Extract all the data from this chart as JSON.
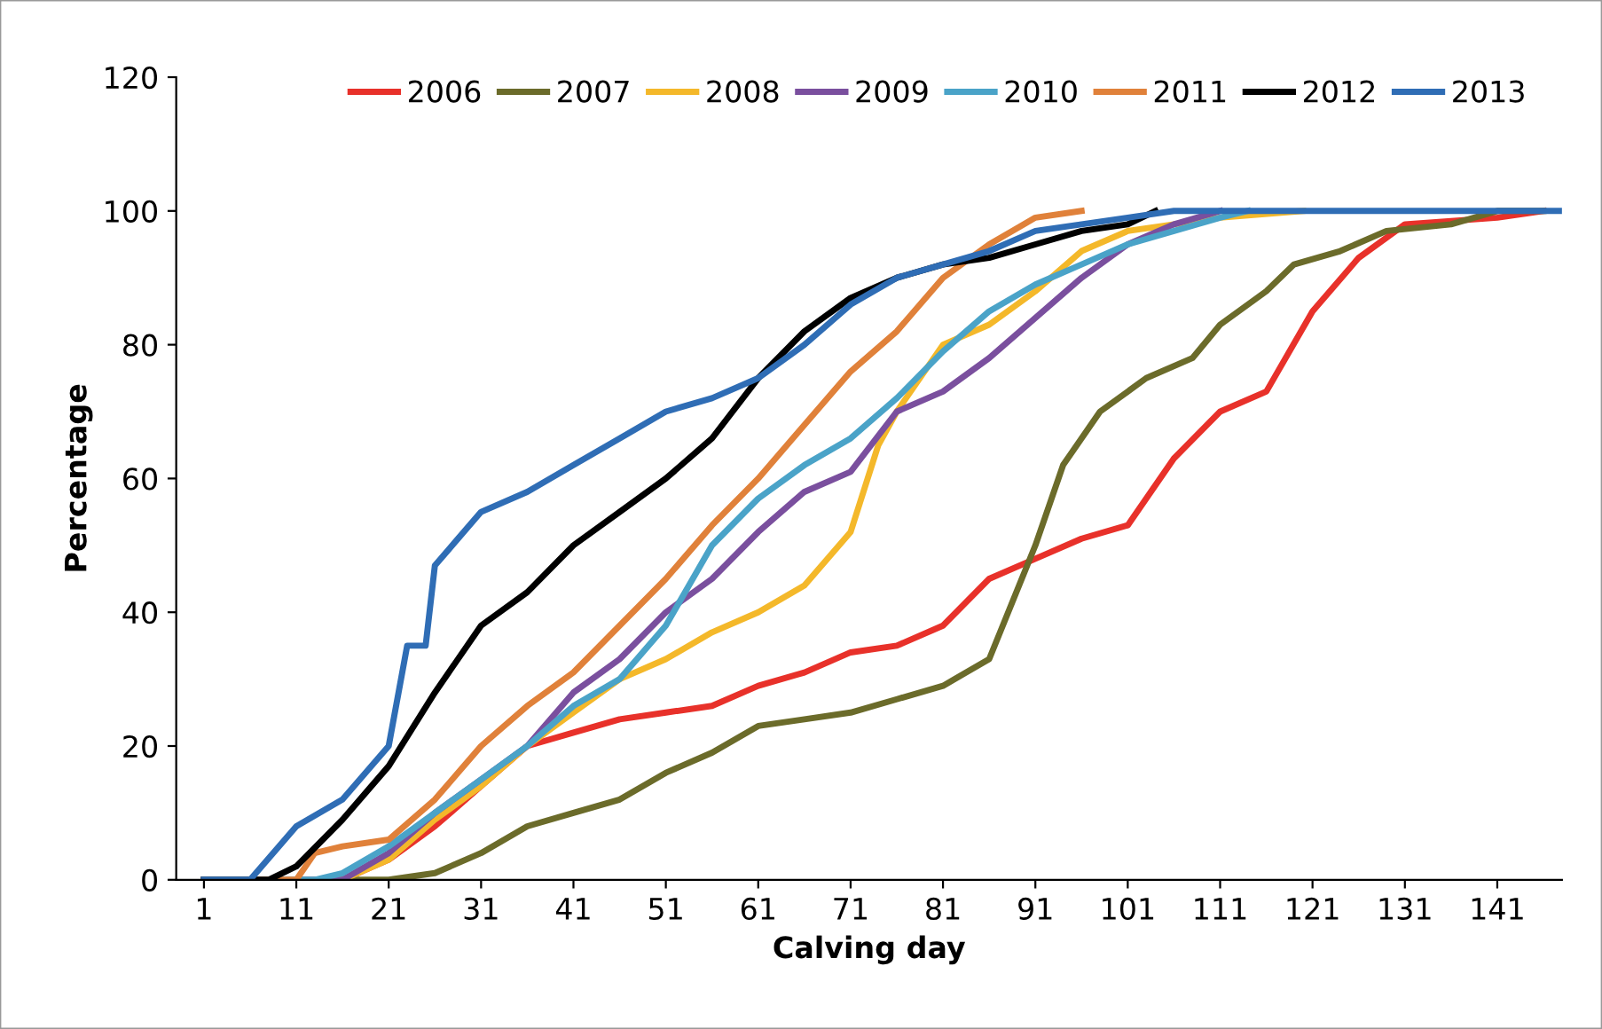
{
  "chart_data": {
    "type": "line",
    "xlabel": "Calving day",
    "ylabel": "Percentage",
    "xlim": [
      -2,
      148
    ],
    "xticks": [
      1,
      11,
      21,
      31,
      41,
      51,
      61,
      71,
      81,
      91,
      101,
      111,
      121,
      131,
      141
    ],
    "ylim": [
      0,
      120
    ],
    "yticks": [
      0,
      20,
      40,
      60,
      80,
      100,
      120
    ],
    "grid": false,
    "legend": "top",
    "marker": "none",
    "line_style": "solid",
    "series": [
      {
        "name": "2006",
        "color": "#e8312a",
        "x": [
          1,
          16,
          21,
          26,
          31,
          36,
          41,
          46,
          51,
          56,
          61,
          66,
          71,
          76,
          81,
          86,
          91,
          96,
          101,
          106,
          111,
          116,
          121,
          126,
          131,
          141,
          146
        ],
        "values": [
          0,
          0,
          3,
          8,
          14,
          20,
          22,
          24,
          25,
          26,
          29,
          31,
          34,
          35,
          38,
          45,
          48,
          51,
          53,
          63,
          70,
          73,
          85,
          93,
          98,
          99,
          100
        ]
      },
      {
        "name": "2007",
        "color": "#6b6b2a",
        "x": [
          1,
          21,
          26,
          31,
          36,
          41,
          46,
          51,
          56,
          61,
          66,
          71,
          76,
          81,
          86,
          91,
          94,
          98,
          103,
          108,
          111,
          116,
          119,
          124,
          129,
          136,
          141,
          146
        ],
        "values": [
          0,
          0,
          1,
          4,
          8,
          10,
          12,
          16,
          19,
          23,
          24,
          25,
          27,
          29,
          33,
          50,
          62,
          70,
          75,
          78,
          83,
          88,
          92,
          94,
          97,
          98,
          100,
          100
        ]
      },
      {
        "name": "2008",
        "color": "#f4b82a",
        "x": [
          1,
          16,
          21,
          26,
          31,
          36,
          41,
          46,
          51,
          56,
          61,
          66,
          71,
          74,
          76,
          81,
          86,
          91,
          96,
          101,
          106,
          111,
          120
        ],
        "values": [
          0,
          0,
          3,
          9,
          14,
          20,
          25,
          30,
          33,
          37,
          40,
          44,
          52,
          65,
          70,
          80,
          83,
          88,
          94,
          97,
          98,
          99,
          100
        ]
      },
      {
        "name": "2009",
        "color": "#7a4f9e",
        "x": [
          1,
          16,
          21,
          26,
          31,
          36,
          41,
          46,
          51,
          56,
          61,
          66,
          71,
          76,
          81,
          86,
          91,
          96,
          101,
          106,
          111
        ],
        "values": [
          0,
          0,
          4,
          10,
          15,
          20,
          28,
          33,
          40,
          45,
          52,
          58,
          61,
          70,
          73,
          78,
          84,
          90,
          95,
          98,
          100
        ]
      },
      {
        "name": "2010",
        "color": "#4aa3c8",
        "x": [
          1,
          13,
          16,
          21,
          26,
          31,
          36,
          41,
          46,
          51,
          56,
          61,
          66,
          71,
          76,
          81,
          86,
          91,
          96,
          101,
          106,
          111,
          114
        ],
        "values": [
          0,
          0,
          1,
          5,
          10,
          15,
          20,
          26,
          30,
          38,
          50,
          57,
          62,
          66,
          72,
          79,
          85,
          89,
          92,
          95,
          97,
          99,
          100
        ]
      },
      {
        "name": "2011",
        "color": "#e0813a",
        "x": [
          1,
          11,
          13,
          16,
          21,
          26,
          31,
          36,
          41,
          46,
          51,
          56,
          61,
          66,
          71,
          76,
          81,
          86,
          91,
          96
        ],
        "values": [
          0,
          0,
          4,
          5,
          6,
          12,
          20,
          26,
          31,
          38,
          45,
          53,
          60,
          68,
          76,
          82,
          90,
          95,
          99,
          100
        ]
      },
      {
        "name": "2012",
        "color": "#000000",
        "x": [
          1,
          8,
          11,
          16,
          21,
          26,
          31,
          36,
          41,
          46,
          51,
          56,
          61,
          66,
          71,
          76,
          81,
          86,
          91,
          96,
          101,
          104
        ],
        "values": [
          0,
          0,
          2,
          9,
          17,
          28,
          38,
          43,
          50,
          55,
          60,
          66,
          75,
          82,
          87,
          90,
          92,
          93,
          95,
          97,
          98,
          100
        ]
      },
      {
        "name": "2013",
        "color": "#2f6db5",
        "x": [
          1,
          6,
          11,
          16,
          21,
          23,
          25,
          26,
          31,
          36,
          41,
          46,
          51,
          56,
          61,
          66,
          71,
          76,
          81,
          86,
          91,
          96,
          101,
          106,
          148
        ],
        "values": [
          0,
          0,
          8,
          12,
          20,
          35,
          35,
          47,
          55,
          58,
          62,
          66,
          70,
          72,
          75,
          80,
          86,
          90,
          92,
          94,
          97,
          98,
          99,
          100,
          100
        ]
      }
    ]
  }
}
